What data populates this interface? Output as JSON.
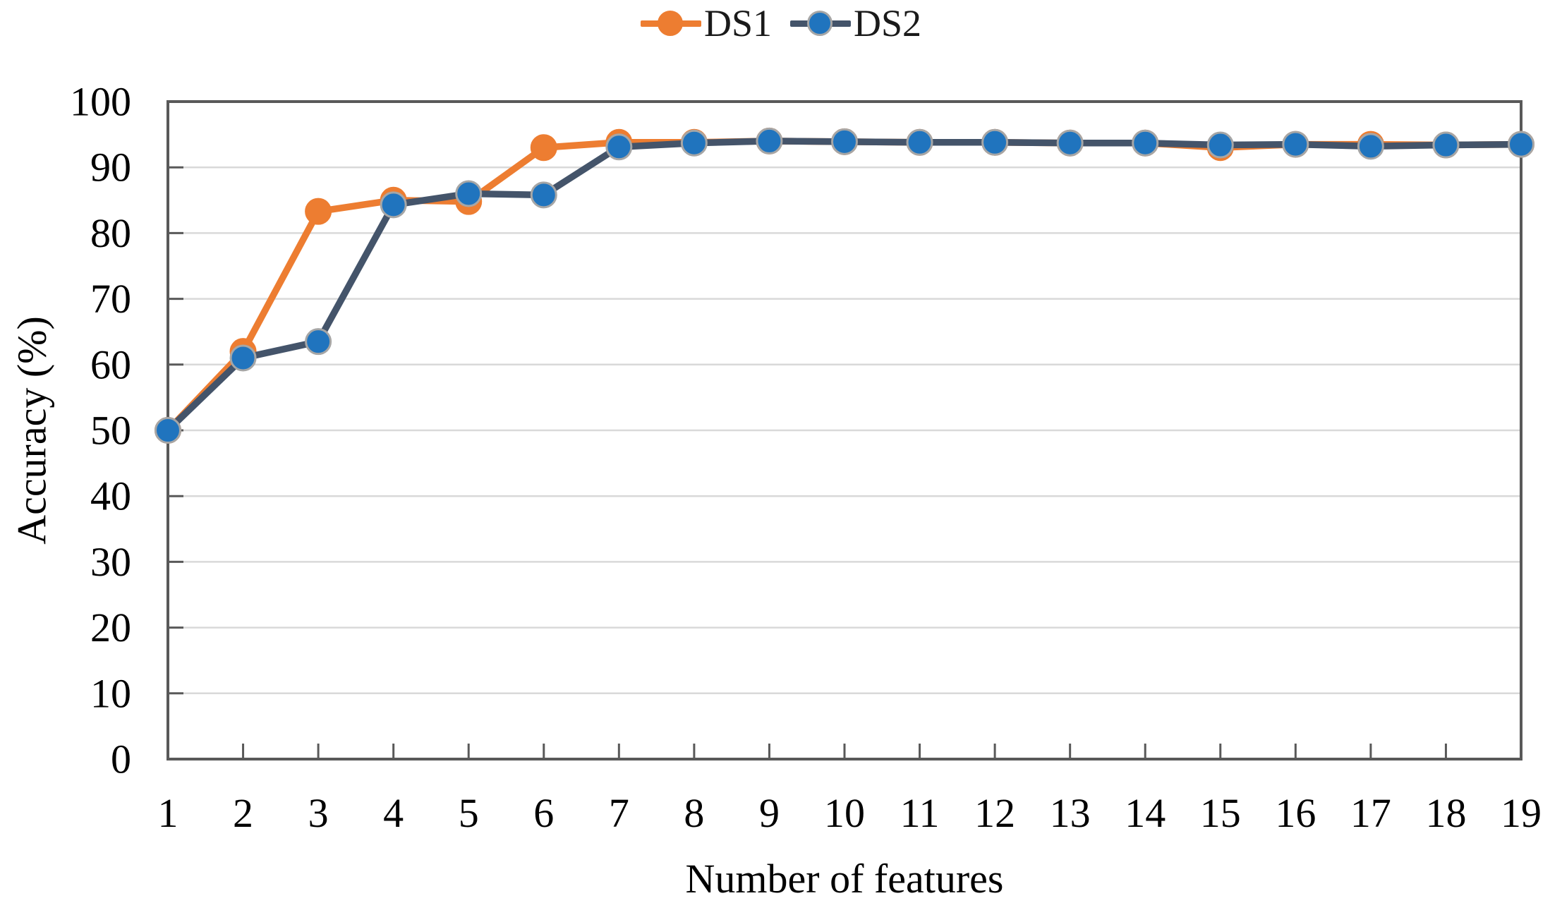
{
  "chart_data": {
    "type": "line",
    "title": "",
    "xlabel": "Number of features",
    "ylabel": "Accuracy (%)",
    "categories": [
      1,
      2,
      3,
      4,
      5,
      6,
      7,
      8,
      9,
      10,
      11,
      12,
      13,
      14,
      15,
      16,
      17,
      18,
      19
    ],
    "series": [
      {
        "name": "DS1",
        "line_color": "#ED7D31",
        "marker_color": "#ED7D31",
        "marker_outline": "#ED7D31",
        "values": [
          50,
          62,
          83.3,
          85,
          84.8,
          93,
          93.8,
          93.8,
          94,
          93.9,
          93.8,
          93.8,
          93.7,
          93.7,
          93,
          93.5,
          93.5,
          93.4,
          93.5
        ]
      },
      {
        "name": "DS2",
        "line_color": "#44546A",
        "marker_color": "#2074BE",
        "marker_outline": "#A6A6A6",
        "values": [
          50,
          61,
          63.5,
          84.3,
          86,
          85.8,
          93.1,
          93.7,
          94,
          93.9,
          93.8,
          93.8,
          93.7,
          93.7,
          93.4,
          93.5,
          93.2,
          93.4,
          93.5
        ]
      }
    ],
    "ylim": [
      0,
      100
    ],
    "yticks": [
      0,
      10,
      20,
      30,
      40,
      50,
      60,
      70,
      80,
      90,
      100
    ],
    "grid": "horizontal",
    "legend_position": "top",
    "colors": {
      "gridline": "#D9D9D9",
      "plot_border": "#595959",
      "axis_text": "#000000"
    }
  }
}
